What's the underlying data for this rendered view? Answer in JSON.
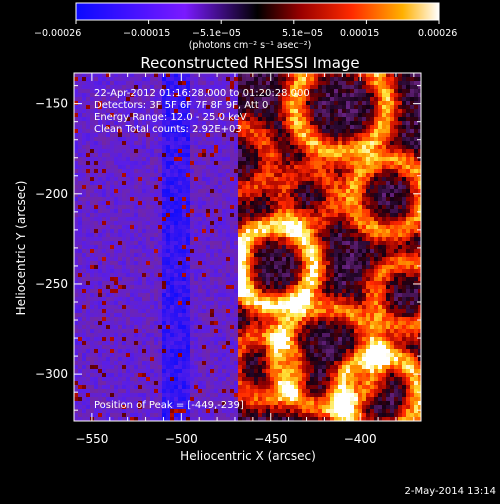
{
  "chart_data": {
    "type": "heatmap",
    "title": "Reconstructed RHESSI Image",
    "xlabel": "Heliocentric X (arcsec)",
    "ylabel": "Heliocentric Y (arcsec)",
    "xlim": [
      -560,
      -366
    ],
    "ylim": [
      -326,
      -133
    ],
    "x_ticks": [
      -550,
      -500,
      -450,
      -400
    ],
    "y_ticks": [
      -150,
      -200,
      -250,
      -300
    ],
    "x_tick_labels": [
      "−550",
      "−500",
      "−450",
      "−400"
    ],
    "y_tick_labels": [
      "−150",
      "−200",
      "−250",
      "−300"
    ],
    "colorbar": {
      "range": [
        -0.00026,
        0.00026
      ],
      "tick_labels": [
        "−0.00026",
        "−0.00015",
        "−5.1e−05",
        "5.1e−05",
        "0.00015",
        "0.00026"
      ],
      "unit_label": "(photons cm⁻² s⁻¹ asec⁻²)"
    },
    "annotations": [
      "22-Apr-2012 01:16:28.000 to 01:20:28.000",
      "Detectors: 3F 5F 6F 7F 8F 9F, Att 0",
      "Energy Range: 12.0 - 25.0 keV",
      "Clean    Total counts: 2.92E+03"
    ],
    "peak_text": "Position of Peak = [-449,-239]",
    "footer_date": "2-May-2014 13:14",
    "peak_position": [
      -449,
      -239
    ]
  }
}
